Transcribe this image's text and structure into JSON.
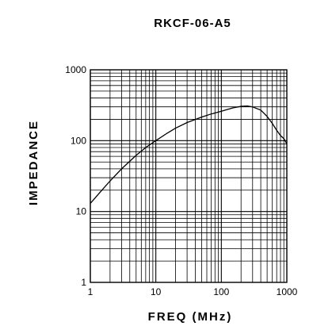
{
  "chart_data": {
    "type": "line",
    "title": "RKCF-06-A5",
    "xlabel": "FREQ (MHz)",
    "ylabel": "IMPEDANCE",
    "x_scale": "log",
    "y_scale": "log",
    "xlim": [
      1,
      1000
    ],
    "ylim": [
      1,
      1000
    ],
    "grid": true,
    "x_ticks": [
      "1",
      "10",
      "100",
      "1000"
    ],
    "y_ticks": [
      "1",
      "10",
      "100",
      "1000"
    ],
    "series": [
      {
        "x": [
          1,
          1.5,
          2,
          3,
          5,
          7,
          10,
          15,
          20,
          30,
          50,
          70,
          100,
          150,
          200,
          250,
          300,
          400,
          500,
          600,
          700,
          800,
          900,
          1000
        ],
        "y": [
          13,
          20,
          27,
          40,
          62,
          80,
          100,
          128,
          150,
          180,
          215,
          238,
          260,
          290,
          305,
          308,
          300,
          270,
          220,
          175,
          140,
          118,
          107,
          90
        ]
      }
    ]
  }
}
